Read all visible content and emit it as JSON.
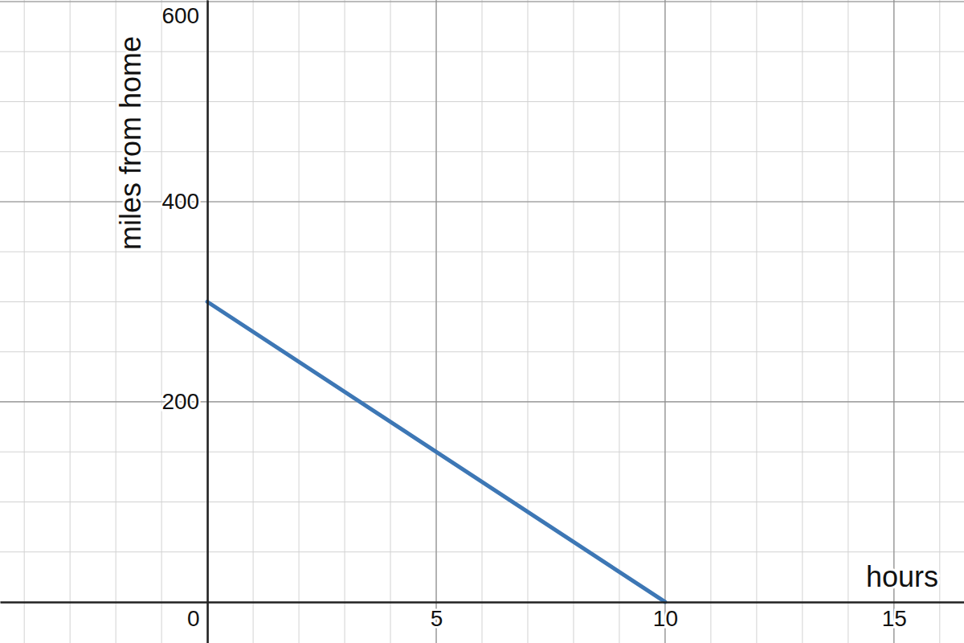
{
  "chart_data": {
    "type": "line",
    "x_label": "hours",
    "y_label": "miles from home",
    "x": [
      0,
      10
    ],
    "values": [
      300,
      0
    ],
    "color": "#3d77b5",
    "xlim": [
      -4.53,
      16.53
    ],
    "ylim": [
      -41,
      601.6
    ],
    "xticks": [
      0,
      5,
      10,
      15
    ],
    "yticks": [
      200,
      400,
      600
    ],
    "grid": true
  }
}
